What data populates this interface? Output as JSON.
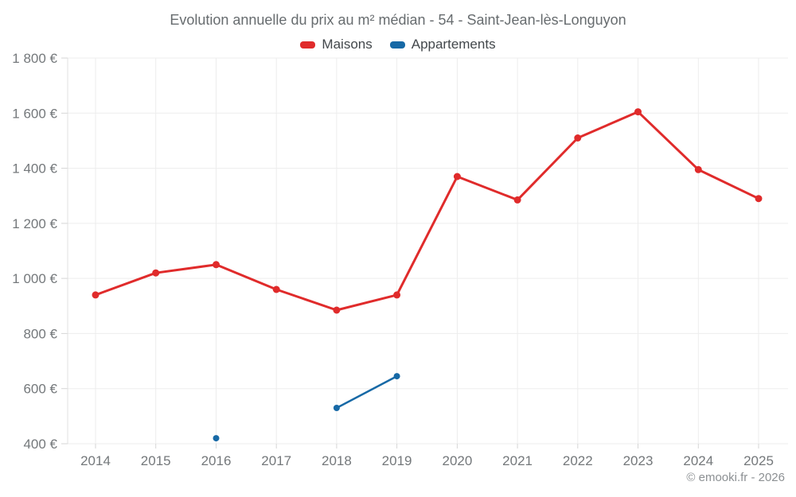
{
  "footer": {
    "copyright": "© emooki.fr - 2026"
  },
  "colors": {
    "maisons": "#e02b2b",
    "appartements": "#1769a6",
    "grid": "#ededed",
    "axis_line": "#e0e0e0",
    "tick": "#d6d6d6",
    "axis_label": "#74787b",
    "title_text": "#676c6f"
  },
  "chart_data": {
    "type": "line",
    "title": "Evolution annuelle du prix au m² médian - 54 - Saint-Jean-lès-Longuyon",
    "categories": [
      "2014",
      "2015",
      "2016",
      "2017",
      "2018",
      "2019",
      "2020",
      "2021",
      "2022",
      "2023",
      "2024",
      "2025"
    ],
    "series": [
      {
        "name": "Maisons",
        "color": "#e02b2b",
        "values": [
          940,
          1020,
          1050,
          960,
          885,
          940,
          1370,
          1285,
          1510,
          1605,
          1395,
          1290
        ]
      },
      {
        "name": "Appartements",
        "color": "#1769a6",
        "values": [
          null,
          null,
          420,
          null,
          530,
          645,
          null,
          null,
          null,
          null,
          null,
          null
        ]
      }
    ],
    "xlabel": "",
    "ylabel": "",
    "ylim": [
      400,
      1800
    ],
    "ytick_step": 200,
    "ytick_suffix": " €",
    "grid": true,
    "legend_position": "top"
  }
}
